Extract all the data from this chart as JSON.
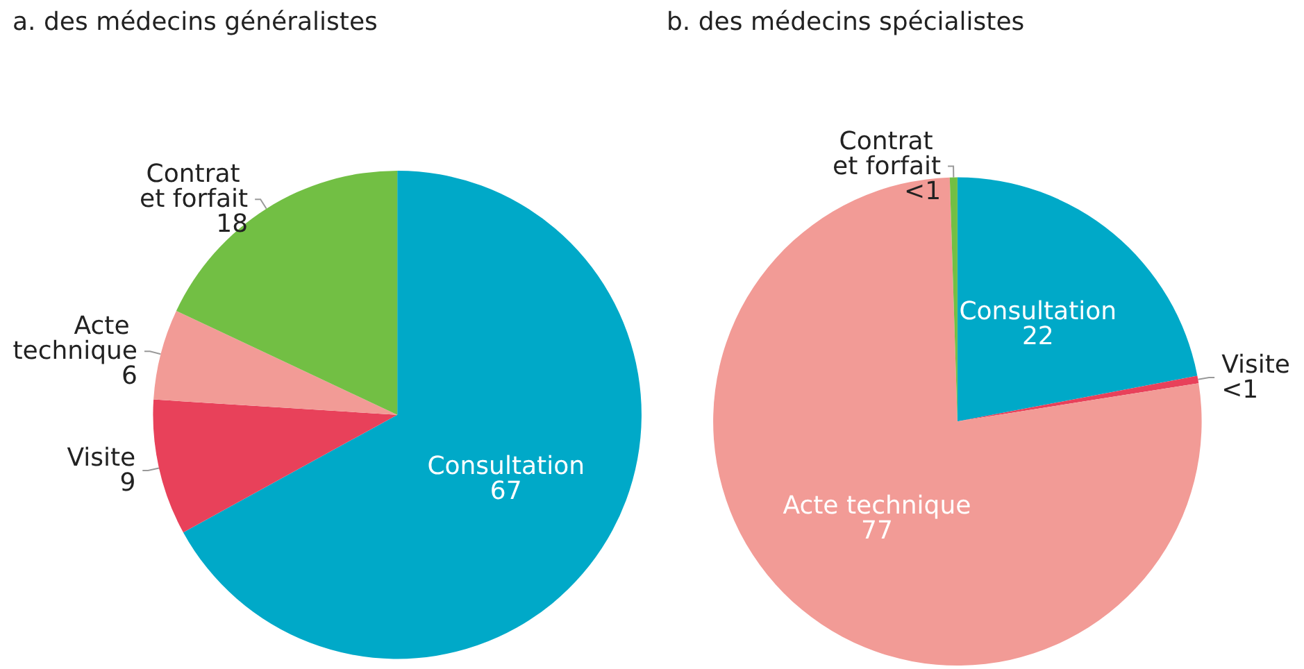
{
  "chart_data": [
    {
      "type": "pie",
      "title": "a. des médecins généralistes",
      "categories": [
        "Consultation",
        "Visite",
        "Acte technique",
        "Contrat et forfait"
      ],
      "values": [
        67,
        9,
        6,
        18
      ],
      "value_labels": [
        "67",
        "9",
        "6",
        "18"
      ],
      "colors": [
        "#00a9c8",
        "#e8415a",
        "#f29b96",
        "#72bf44"
      ],
      "legend": false
    },
    {
      "type": "pie",
      "title": "b. des médecins spécialistes",
      "categories": [
        "Consultation",
        "Visite",
        "Acte technique",
        "Contrat et forfait"
      ],
      "values": [
        22,
        0.5,
        77,
        0.5
      ],
      "value_labels": [
        "22",
        "<1",
        "77",
        "<1"
      ],
      "colors": [
        "#00a9c8",
        "#e8415a",
        "#f29b96",
        "#72bf44"
      ],
      "legend": false
    }
  ]
}
